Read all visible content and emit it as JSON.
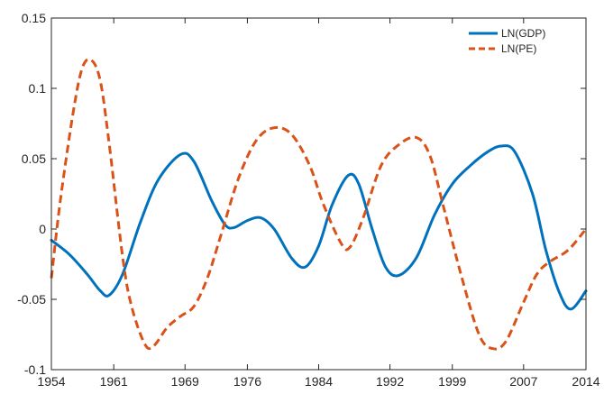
{
  "chart_data": {
    "type": "line",
    "title": "",
    "xlabel": "",
    "ylabel": "",
    "xlim": [
      1954,
      2014
    ],
    "ylim": [
      -0.1,
      0.15
    ],
    "x_ticks": [
      "1954",
      "1961",
      "1969",
      "1976",
      "1984",
      "1992",
      "1999",
      "2007",
      "2014"
    ],
    "y_ticks": [
      "-0.1",
      "-0.05",
      "0",
      "0.05",
      "0.1",
      "0.15"
    ],
    "grid": false,
    "legend_position": "top-right",
    "series": [
      {
        "name": "LN(GDP)",
        "color": "#0072BD",
        "style": "solid",
        "x": [
          1954,
          1956,
          1958,
          1959.5,
          1960.5,
          1962,
          1964,
          1966,
          1968.5,
          1970,
          1972,
          1973.5,
          1974.5,
          1976,
          1977.5,
          1979,
          1981,
          1982.5,
          1984,
          1985.5,
          1987.3,
          1988.5,
          1990,
          1991.5,
          1993,
          1995,
          1997,
          1999,
          2001,
          2003,
          2004.5,
          2006,
          2008,
          2009.5,
          2011,
          2012.3,
          2014
        ],
        "y": [
          -0.008,
          -0.018,
          -0.032,
          -0.044,
          -0.047,
          -0.032,
          0.005,
          0.035,
          0.053,
          0.048,
          0.02,
          0.003,
          0.001,
          0.006,
          0.008,
          0.0,
          -0.021,
          -0.027,
          -0.012,
          0.017,
          0.038,
          0.032,
          0.0,
          -0.027,
          -0.033,
          -0.02,
          0.01,
          0.032,
          0.045,
          0.055,
          0.059,
          0.055,
          0.025,
          -0.015,
          -0.045,
          -0.057,
          -0.044
        ]
      },
      {
        "name": "LN(PE)",
        "color": "#D95319",
        "style": "dashed",
        "x": [
          1954,
          1955,
          1956.5,
          1957.5,
          1958.5,
          1959.5,
          1960.5,
          1962,
          1963,
          1964.5,
          1965.5,
          1967,
          1968.5,
          1970,
          1971.5,
          1973,
          1975,
          1977,
          1979,
          1981,
          1983,
          1984.5,
          1986.5,
          1987.5,
          1989,
          1991,
          1993,
          1995,
          1996.5,
          1998,
          2000,
          2002,
          2003.5,
          2005,
          2007,
          2008.5,
          2010,
          2012,
          2014
        ],
        "y": [
          -0.035,
          0.02,
          0.085,
          0.115,
          0.12,
          0.105,
          0.06,
          -0.02,
          -0.055,
          -0.082,
          -0.083,
          -0.07,
          -0.062,
          -0.055,
          -0.035,
          -0.005,
          0.036,
          0.063,
          0.072,
          0.067,
          0.045,
          0.018,
          -0.01,
          -0.013,
          0.008,
          0.045,
          0.06,
          0.065,
          0.052,
          0.016,
          -0.033,
          -0.075,
          -0.085,
          -0.08,
          -0.052,
          -0.032,
          -0.023,
          -0.015,
          0.0
        ]
      }
    ]
  }
}
